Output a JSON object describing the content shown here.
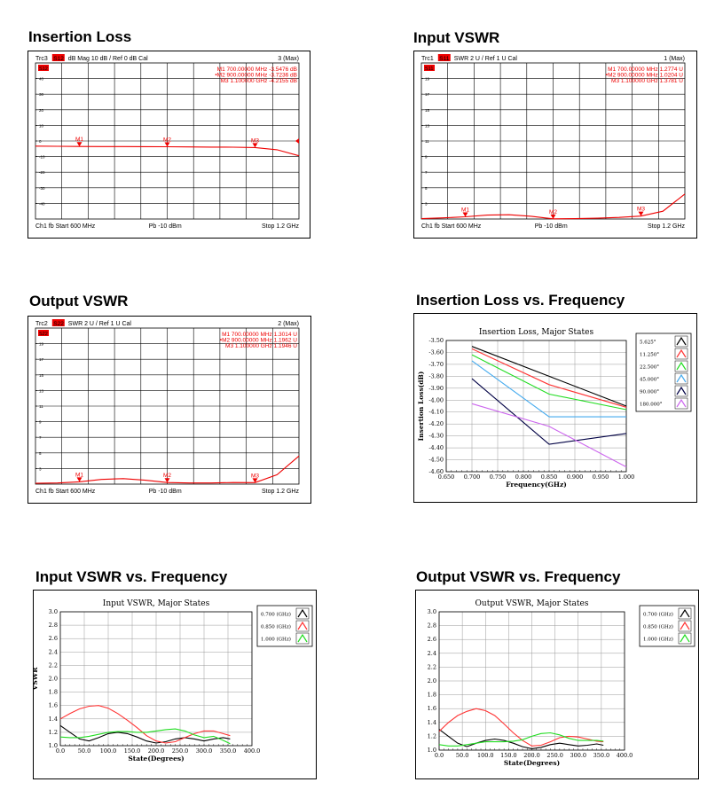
{
  "section_titles": [
    "Insertion Loss",
    "Input VSWR",
    "Output VSWR",
    "Insertion Loss vs. Frequency",
    "Input  VSWR vs. Frequency",
    "Output VSWR vs. Frequency"
  ],
  "chart_data": [
    {
      "type": "line",
      "title": "Insertion Loss",
      "header": {
        "trace": "Trc3",
        "param": "S12",
        "format": "dB Mag",
        "scale": "10 dB /",
        "ref": "Ref 0 dB",
        "cal": "Cal",
        "num": "3 (Max)",
        "tag": "S12"
      },
      "footer": {
        "ch": "Ch1",
        "fb": "fb",
        "start": "Start  600 MHz",
        "pb": "Pb  -10 dBm",
        "stop": "Stop  1.2 GHz"
      },
      "markers": [
        {
          "name": "M1",
          "line": "M1   700.00000  MHz   -3.5476  dB",
          "x_mhz": 700,
          "y": -3.55
        },
        {
          "name": "M2",
          "line": "•M2   900.00000  MHz   -3.7236  dB",
          "x_mhz": 900,
          "y": -3.72
        },
        {
          "name": "M3",
          "line": "M3    1.100000  GHz   -4.2155  dB",
          "x_mhz": 1100,
          "y": -4.22
        }
      ],
      "ytick_labels": [
        "40",
        "30",
        "20",
        "10",
        "0",
        "-10",
        "-20",
        "-30",
        "-40"
      ],
      "x_range_mhz": [
        600,
        1200
      ],
      "y_range": [
        -50,
        50
      ],
      "ref_level": 0,
      "trace": {
        "x_mhz": [
          600,
          650,
          700,
          750,
          800,
          850,
          900,
          950,
          1000,
          1050,
          1100,
          1150,
          1200
        ],
        "y": [
          -3.3,
          -3.4,
          -3.55,
          -3.6,
          -3.6,
          -3.65,
          -3.72,
          -3.8,
          -3.9,
          -4.0,
          -4.2,
          -5.6,
          -9.5
        ]
      }
    },
    {
      "type": "line",
      "title": "Input VSWR",
      "header": {
        "trace": "Trc1",
        "param": "S11",
        "format": "SWR",
        "scale": "2 U /",
        "ref": "Ref 1 U",
        "cal": "Cal",
        "num": "1 (Max)",
        "tag": "S11"
      },
      "footer": {
        "ch": "Ch1",
        "fb": "fb",
        "start": "Start  600 MHz",
        "pb": "Pb  -10 dBm",
        "stop": "Stop  1.2 GHz"
      },
      "markers": [
        {
          "name": "M1",
          "line": "M1   700.00000  MHz    1.2774  U",
          "x_mhz": 700,
          "y": 1.28
        },
        {
          "name": "M2",
          "line": "•M2   900.00000  MHz    1.0204  U",
          "x_mhz": 900,
          "y": 1.02
        },
        {
          "name": "M3",
          "line": "M3    1.100000  GHz    1.3781  U",
          "x_mhz": 1100,
          "y": 1.38
        }
      ],
      "ytick_labels": [
        "19",
        "17",
        "15",
        "13",
        "11",
        "9",
        "7",
        "5",
        "3"
      ],
      "x_range_mhz": [
        600,
        1200
      ],
      "y_range": [
        1,
        21
      ],
      "trace": {
        "x_mhz": [
          600,
          650,
          700,
          750,
          800,
          850,
          900,
          950,
          1000,
          1050,
          1100,
          1150,
          1200
        ],
        "y": [
          1.05,
          1.15,
          1.28,
          1.5,
          1.55,
          1.35,
          1.02,
          1.05,
          1.1,
          1.2,
          1.38,
          2.0,
          4.2
        ]
      }
    },
    {
      "type": "line",
      "title": "Output VSWR",
      "header": {
        "trace": "Trc2",
        "param": "S22",
        "format": "SWR",
        "scale": "2 U /",
        "ref": "Ref 1 U",
        "cal": "Cal",
        "num": "2 (Max)",
        "tag": "S22"
      },
      "footer": {
        "ch": "Ch1",
        "fb": "fb",
        "start": "Start  600 MHz",
        "pb": "Pb  -10 dBm",
        "stop": "Stop  1.2 GHz"
      },
      "markers": [
        {
          "name": "M1",
          "line": "M1   700.00000  MHz    1.3014  U",
          "x_mhz": 700,
          "y": 1.3
        },
        {
          "name": "M2",
          "line": "•M2   900.00000  MHz    1.1962  U",
          "x_mhz": 900,
          "y": 1.2
        },
        {
          "name": "M3",
          "line": "M3    1.100000  GHz    1.1946  U",
          "x_mhz": 1100,
          "y": 1.19
        }
      ],
      "ytick_labels": [
        "19",
        "17",
        "15",
        "13",
        "11",
        "9",
        "7",
        "5",
        "3"
      ],
      "x_range_mhz": [
        600,
        1200
      ],
      "y_range": [
        1,
        21
      ],
      "trace": {
        "x_mhz": [
          600,
          650,
          700,
          750,
          800,
          850,
          900,
          950,
          1000,
          1050,
          1100,
          1150,
          1200
        ],
        "y": [
          1.1,
          1.15,
          1.3,
          1.6,
          1.7,
          1.5,
          1.2,
          1.15,
          1.15,
          1.2,
          1.19,
          2.2,
          4.6
        ]
      }
    },
    {
      "type": "line",
      "title": "Insertion Loss, Major States",
      "xlabel": "Frequency(GHz)",
      "ylabel": "Insertion Loss(dB)",
      "xlim": [
        0.65,
        1.0
      ],
      "ylim": [
        -4.6,
        -3.5
      ],
      "xticks": [
        "0.650",
        "0.700",
        "0.750",
        "0.800",
        "0.850",
        "0.900",
        "0.950",
        "1.000"
      ],
      "yticks": [
        "-3.50",
        "-3.60",
        "-3.70",
        "-3.80",
        "-3.90",
        "-4.00",
        "-4.10",
        "-4.20",
        "-4.30",
        "-4.40",
        "-4.50",
        "-4.60"
      ],
      "x": [
        0.7,
        0.85,
        1.0
      ],
      "series": [
        {
          "name": "5.625°",
          "color": "#000000",
          "values": [
            -3.55,
            -3.8,
            -4.05
          ]
        },
        {
          "name": "11.250°",
          "color": "#ff3333",
          "values": [
            -3.57,
            -3.87,
            -4.06
          ]
        },
        {
          "name": "22.500°",
          "color": "#22dd22",
          "values": [
            -3.62,
            -3.95,
            -4.08
          ]
        },
        {
          "name": "45.000°",
          "color": "#44aaee",
          "values": [
            -3.67,
            -4.14,
            -4.14
          ]
        },
        {
          "name": "90.000°",
          "color": "#000044",
          "values": [
            -3.82,
            -4.37,
            -4.28
          ]
        },
        {
          "name": "180.000°",
          "color": "#cc66ee",
          "values": [
            -4.03,
            -4.22,
            -4.56
          ]
        }
      ]
    },
    {
      "type": "line",
      "title": "Input VSWR, Major States",
      "xlabel": "State(Degrees)",
      "ylabel": "VSWR",
      "xlim": [
        0,
        400
      ],
      "ylim": [
        1.0,
        3.0
      ],
      "xticks": [
        "0.0",
        "50.0",
        "100.0",
        "150.0",
        "200.0",
        "250.0",
        "300.0",
        "350.0",
        "400.0"
      ],
      "yticks": [
        "1.0",
        "1.2",
        "1.4",
        "1.6",
        "1.8",
        "2.0",
        "2.2",
        "2.4",
        "2.6",
        "2.8",
        "3.0"
      ],
      "x": [
        0,
        20,
        40,
        60,
        80,
        100,
        120,
        140,
        160,
        180,
        200,
        220,
        240,
        260,
        280,
        300,
        320,
        340,
        354.375
      ],
      "series": [
        {
          "name": "0.700 (GHz)",
          "color": "#000000",
          "values": [
            1.3,
            1.2,
            1.1,
            1.07,
            1.12,
            1.18,
            1.2,
            1.18,
            1.13,
            1.07,
            1.04,
            1.06,
            1.1,
            1.12,
            1.1,
            1.07,
            1.1,
            1.12,
            1.1
          ]
        },
        {
          "name": "0.850 (GHz)",
          "color": "#ff3333",
          "values": [
            1.4,
            1.48,
            1.55,
            1.59,
            1.6,
            1.56,
            1.48,
            1.38,
            1.27,
            1.15,
            1.07,
            1.04,
            1.06,
            1.12,
            1.18,
            1.22,
            1.22,
            1.18,
            1.15
          ]
        },
        {
          "name": "1.000 (GHz)",
          "color": "#22dd22",
          "values": [
            1.13,
            1.12,
            1.12,
            1.14,
            1.17,
            1.2,
            1.21,
            1.21,
            1.2,
            1.2,
            1.22,
            1.24,
            1.25,
            1.22,
            1.16,
            1.12,
            1.14,
            1.08,
            1.03
          ]
        }
      ]
    },
    {
      "type": "line",
      "title": "Output VSWR, Major States",
      "xlabel": "State(Degrees)",
      "ylabel": "VSWR",
      "xlim": [
        0,
        400
      ],
      "ylim": [
        1.0,
        3.0
      ],
      "xticks": [
        "0.0",
        "50.0",
        "100.0",
        "150.0",
        "200.0",
        "250.0",
        "300.0",
        "350.0",
        "400.0"
      ],
      "yticks": [
        "1.0",
        "1.2",
        "1.4",
        "1.6",
        "1.8",
        "2.0",
        "2.2",
        "2.4",
        "2.6",
        "2.8",
        "3.0"
      ],
      "x": [
        0,
        20,
        40,
        60,
        80,
        100,
        120,
        140,
        160,
        180,
        200,
        220,
        240,
        260,
        280,
        300,
        320,
        340,
        354.375
      ],
      "series": [
        {
          "name": "0.700 (GHz)",
          "color": "#000000",
          "values": [
            1.3,
            1.2,
            1.1,
            1.05,
            1.1,
            1.14,
            1.16,
            1.14,
            1.1,
            1.05,
            1.02,
            1.04,
            1.08,
            1.1,
            1.08,
            1.06,
            1.07,
            1.09,
            1.07
          ]
        },
        {
          "name": "0.850 (GHz)",
          "color": "#ff3333",
          "values": [
            1.27,
            1.4,
            1.5,
            1.56,
            1.6,
            1.57,
            1.5,
            1.38,
            1.25,
            1.14,
            1.06,
            1.07,
            1.12,
            1.18,
            1.2,
            1.19,
            1.16,
            1.13,
            1.12
          ]
        },
        {
          "name": "1.000 (GHz)",
          "color": "#22dd22",
          "values": [
            1.08,
            1.06,
            1.06,
            1.08,
            1.1,
            1.12,
            1.12,
            1.12,
            1.13,
            1.15,
            1.2,
            1.24,
            1.25,
            1.22,
            1.17,
            1.14,
            1.14,
            1.14,
            1.13
          ]
        }
      ]
    }
  ]
}
